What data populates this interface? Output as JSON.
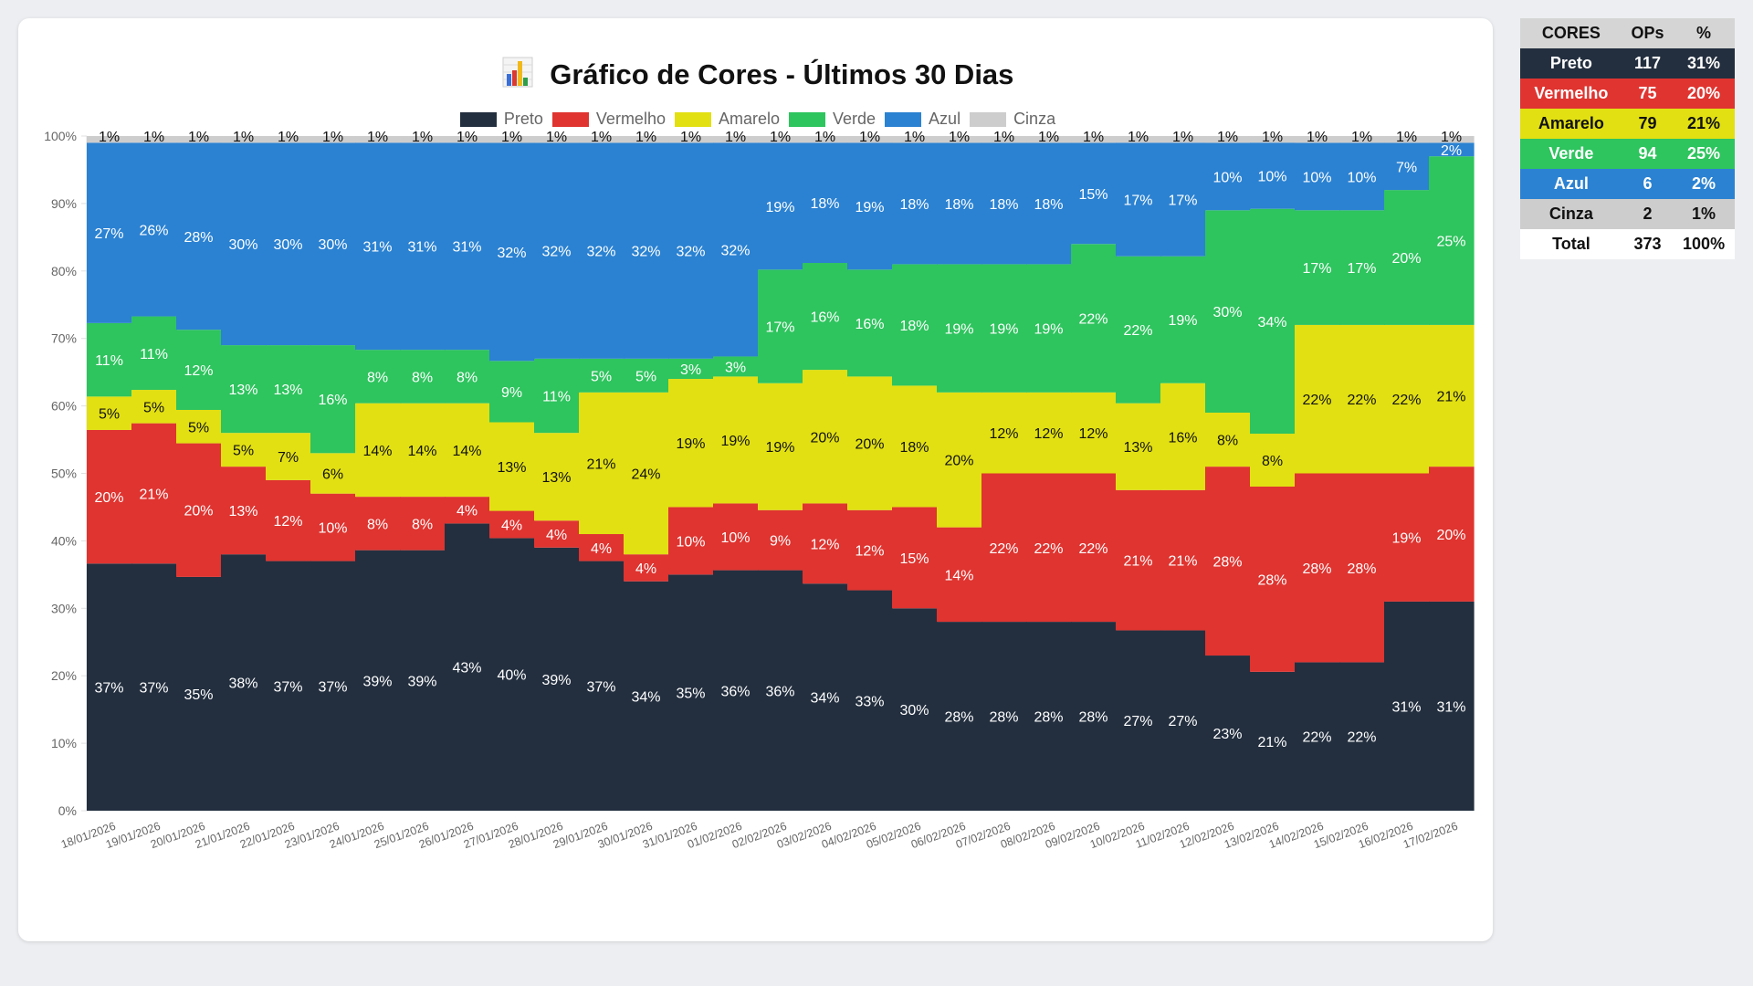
{
  "title": "Gráfico de Cores - Últimos 30 Dias",
  "title_icon": "bar-chart-icon",
  "colors": {
    "Preto": "#232f3f",
    "Vermelho": "#df3430",
    "Amarelo": "#e2e012",
    "Verde": "#2ec45e",
    "Azul": "#2b82d2",
    "Cinza": "#cdcdcd"
  },
  "chart_data": {
    "type": "bar",
    "stacked": true,
    "normalized": true,
    "title": "Gráfico de Cores - Últimos 30 Dias",
    "xlabel": "",
    "ylabel": "",
    "ylim": [
      0,
      100
    ],
    "yticks": [
      "0%",
      "10%",
      "20%",
      "30%",
      "40%",
      "50%",
      "60%",
      "70%",
      "80%",
      "90%",
      "100%"
    ],
    "grid": false,
    "legend_position": "top-center",
    "categories": [
      "18/01/2026",
      "19/01/2026",
      "20/01/2026",
      "21/01/2026",
      "22/01/2026",
      "23/01/2026",
      "24/01/2026",
      "25/01/2026",
      "26/01/2026",
      "27/01/2026",
      "28/01/2026",
      "29/01/2026",
      "30/01/2026",
      "31/01/2026",
      "01/02/2026",
      "02/02/2026",
      "03/02/2026",
      "04/02/2026",
      "05/02/2026",
      "06/02/2026",
      "07/02/2026",
      "08/02/2026",
      "09/02/2026",
      "10/02/2026",
      "11/02/2026",
      "12/02/2026",
      "13/02/2026",
      "14/02/2026",
      "15/02/2026",
      "16/02/2026",
      "17/02/2026"
    ],
    "series": [
      {
        "name": "Preto",
        "values": [
          37,
          37,
          35,
          38,
          37,
          37,
          39,
          39,
          43,
          40,
          39,
          37,
          34,
          35,
          36,
          36,
          34,
          33,
          30,
          28,
          28,
          28,
          28,
          27,
          27,
          23,
          21,
          22,
          22,
          31,
          31
        ]
      },
      {
        "name": "Vermelho",
        "values": [
          20,
          21,
          20,
          13,
          12,
          10,
          8,
          8,
          4,
          4,
          4,
          4,
          4,
          10,
          10,
          9,
          12,
          12,
          15,
          14,
          22,
          22,
          22,
          21,
          21,
          28,
          28,
          28,
          28,
          19,
          20
        ]
      },
      {
        "name": "Amarelo",
        "values": [
          5,
          5,
          5,
          5,
          7,
          6,
          14,
          14,
          14,
          13,
          13,
          21,
          24,
          19,
          19,
          19,
          20,
          20,
          18,
          20,
          12,
          12,
          12,
          13,
          16,
          8,
          8,
          22,
          22,
          22,
          21
        ]
      },
      {
        "name": "Verde",
        "values": [
          11,
          11,
          12,
          13,
          13,
          16,
          8,
          8,
          8,
          9,
          11,
          5,
          5,
          3,
          3,
          17,
          16,
          16,
          18,
          19,
          19,
          19,
          22,
          22,
          19,
          30,
          34,
          17,
          17,
          20,
          25
        ]
      },
      {
        "name": "Azul",
        "values": [
          27,
          26,
          28,
          30,
          30,
          30,
          31,
          31,
          31,
          32,
          32,
          32,
          32,
          32,
          32,
          19,
          18,
          19,
          18,
          18,
          18,
          18,
          15,
          17,
          17,
          10,
          10,
          10,
          10,
          7,
          2
        ]
      },
      {
        "name": "Cinza",
        "values": [
          1,
          1,
          1,
          1,
          1,
          1,
          1,
          1,
          1,
          1,
          1,
          1,
          1,
          1,
          1,
          1,
          1,
          1,
          1,
          1,
          1,
          1,
          1,
          1,
          1,
          1,
          1,
          1,
          1,
          1,
          1
        ]
      }
    ]
  },
  "summary_table": {
    "headers": [
      "CORES",
      "OPs",
      "%"
    ],
    "rows": [
      {
        "name": "Preto",
        "ops": "117",
        "pct": "31%"
      },
      {
        "name": "Vermelho",
        "ops": "75",
        "pct": "20%"
      },
      {
        "name": "Amarelo",
        "ops": "79",
        "pct": "21%"
      },
      {
        "name": "Verde",
        "ops": "94",
        "pct": "25%"
      },
      {
        "name": "Azul",
        "ops": "6",
        "pct": "2%"
      },
      {
        "name": "Cinza",
        "ops": "2",
        "pct": "1%"
      }
    ],
    "total": {
      "name": "Total",
      "ops": "373",
      "pct": "100%"
    }
  }
}
